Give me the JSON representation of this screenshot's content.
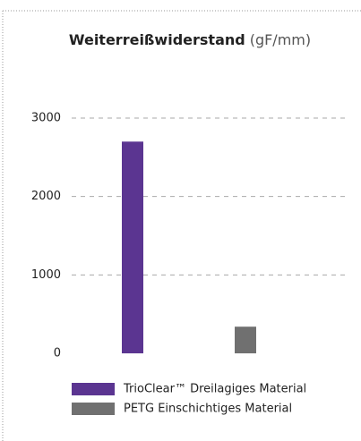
{
  "chart_data": {
    "type": "bar",
    "title": "Weiterreißwiderstand",
    "unit": "(gF/mm)",
    "series": [
      {
        "name": "TrioClear™ Dreilagiges Material",
        "color": "#5b3591",
        "values": [
          2700
        ]
      },
      {
        "name": "PETG Einschichtiges Material",
        "color": "#707070",
        "values": [
          340
        ]
      }
    ],
    "ylim": [
      0,
      3000
    ],
    "yticks": [
      0,
      1000,
      2000,
      3000
    ],
    "grid": true
  }
}
